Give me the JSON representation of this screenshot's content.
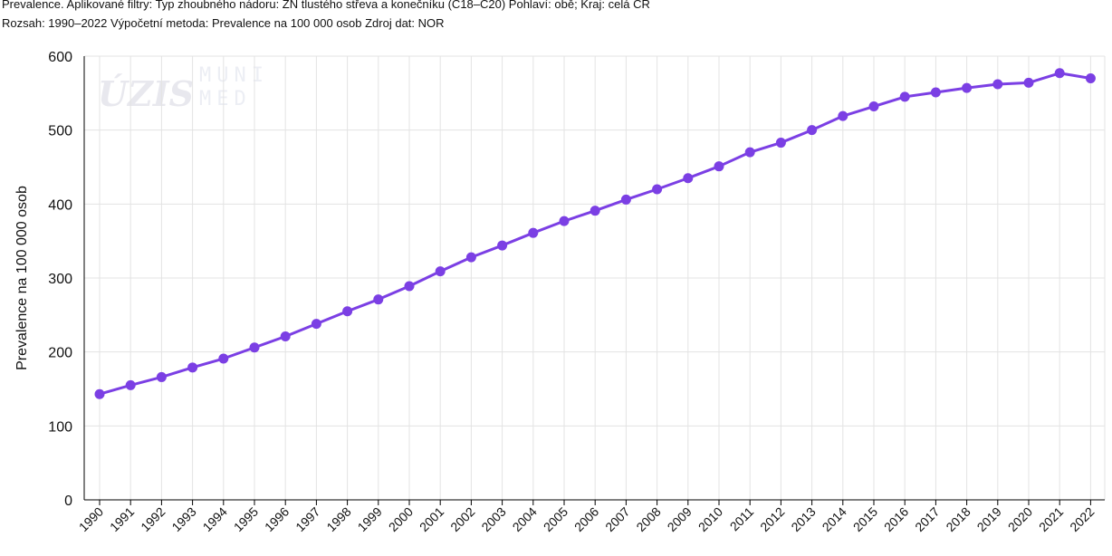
{
  "caption": {
    "line1": "Prevalence. Aplikované filtry: Typ zhoubného nádoru: ZN tlustého střeva a konečníku (C18–C20) Pohlaví: obě; Kraj: celá ČR",
    "line2": "Rozsah: 1990–2022 Výpočetní metoda: Prevalence na 100 000 osob Zdroj dat: NOR"
  },
  "watermark": {
    "logo1": "ÚZIS",
    "logo2_line1": "MUNI",
    "logo2_line2": "MED"
  },
  "colors": {
    "series": "#7b3fe4",
    "grid": "#e3e3e3",
    "axis": "#000000"
  },
  "chart_data": {
    "type": "line",
    "title": "",
    "xlabel": "",
    "ylabel": "Prevalence na 100 000 osob",
    "ylim": [
      0,
      600
    ],
    "yticks": [
      0,
      100,
      200,
      300,
      400,
      500,
      600
    ],
    "grid": true,
    "x": [
      "1990",
      "1991",
      "1992",
      "1993",
      "1994",
      "1995",
      "1996",
      "1997",
      "1998",
      "1999",
      "2000",
      "2001",
      "2002",
      "2003",
      "2004",
      "2005",
      "2006",
      "2007",
      "2008",
      "2009",
      "2010",
      "2011",
      "2012",
      "2013",
      "2014",
      "2015",
      "2016",
      "2017",
      "2018",
      "2019",
      "2020",
      "2021",
      "2022"
    ],
    "series": [
      {
        "values": [
          143,
          155,
          166,
          179,
          191,
          206,
          221,
          238,
          255,
          271,
          289,
          309,
          328,
          344,
          361,
          377,
          391,
          406,
          420,
          435,
          451,
          470,
          483,
          500,
          519,
          532,
          545,
          551,
          557,
          562,
          564,
          577,
          570
        ]
      }
    ]
  }
}
